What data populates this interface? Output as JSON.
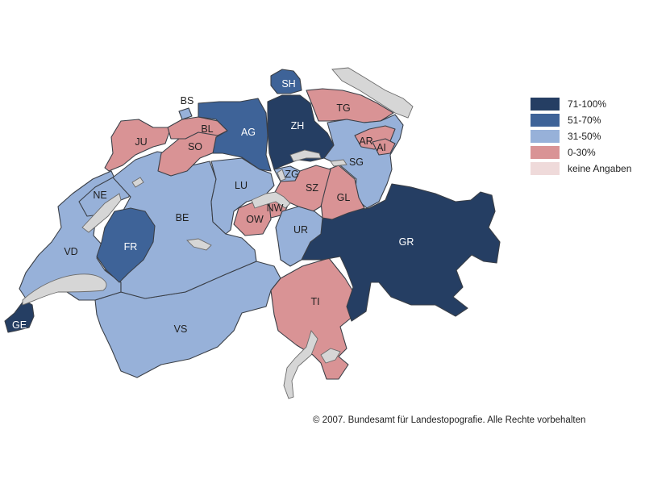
{
  "colors": {
    "c1": "#253e63",
    "c2": "#3e6398",
    "c3": "#97b1d9",
    "c4": "#d99395",
    "c5": "#efdada",
    "lake": "#d6d6d6"
  },
  "legend": [
    {
      "label": "71-100%",
      "cls": "c1"
    },
    {
      "label": "51-70%",
      "cls": "c2"
    },
    {
      "label": "31-50%",
      "cls": "c3"
    },
    {
      "label": "0-30%",
      "cls": "c4"
    },
    {
      "label": "keine Angaben",
      "cls": "c5"
    }
  ],
  "cantons": [
    {
      "code": "GE",
      "cls": "c1"
    },
    {
      "code": "VD",
      "cls": "c3"
    },
    {
      "code": "VS",
      "cls": "c3"
    },
    {
      "code": "NE",
      "cls": "c3"
    },
    {
      "code": "JU",
      "cls": "c4"
    },
    {
      "code": "FR",
      "cls": "c2"
    },
    {
      "code": "BE",
      "cls": "c3"
    },
    {
      "code": "SO",
      "cls": "c4"
    },
    {
      "code": "BL",
      "cls": "c4"
    },
    {
      "code": "BS",
      "cls": "c3"
    },
    {
      "code": "AG",
      "cls": "c2"
    },
    {
      "code": "LU",
      "cls": "c3"
    },
    {
      "code": "ZH",
      "cls": "c1"
    },
    {
      "code": "SH",
      "cls": "c2"
    },
    {
      "code": "TG",
      "cls": "c4"
    },
    {
      "code": "SG",
      "cls": "c3"
    },
    {
      "code": "AR",
      "cls": "c4"
    },
    {
      "code": "AI",
      "cls": "c4"
    },
    {
      "code": "GL",
      "cls": "c4"
    },
    {
      "code": "SZ",
      "cls": "c4"
    },
    {
      "code": "ZG",
      "cls": "c3"
    },
    {
      "code": "OW",
      "cls": "c4"
    },
    {
      "code": "NW",
      "cls": "c4"
    },
    {
      "code": "UR",
      "cls": "c3"
    },
    {
      "code": "GR",
      "cls": "c1"
    },
    {
      "code": "TI",
      "cls": "c4"
    }
  ],
  "copyright": "© 2007. Bundesamt für Landestopografie. Alle Rechte vorbehalten"
}
